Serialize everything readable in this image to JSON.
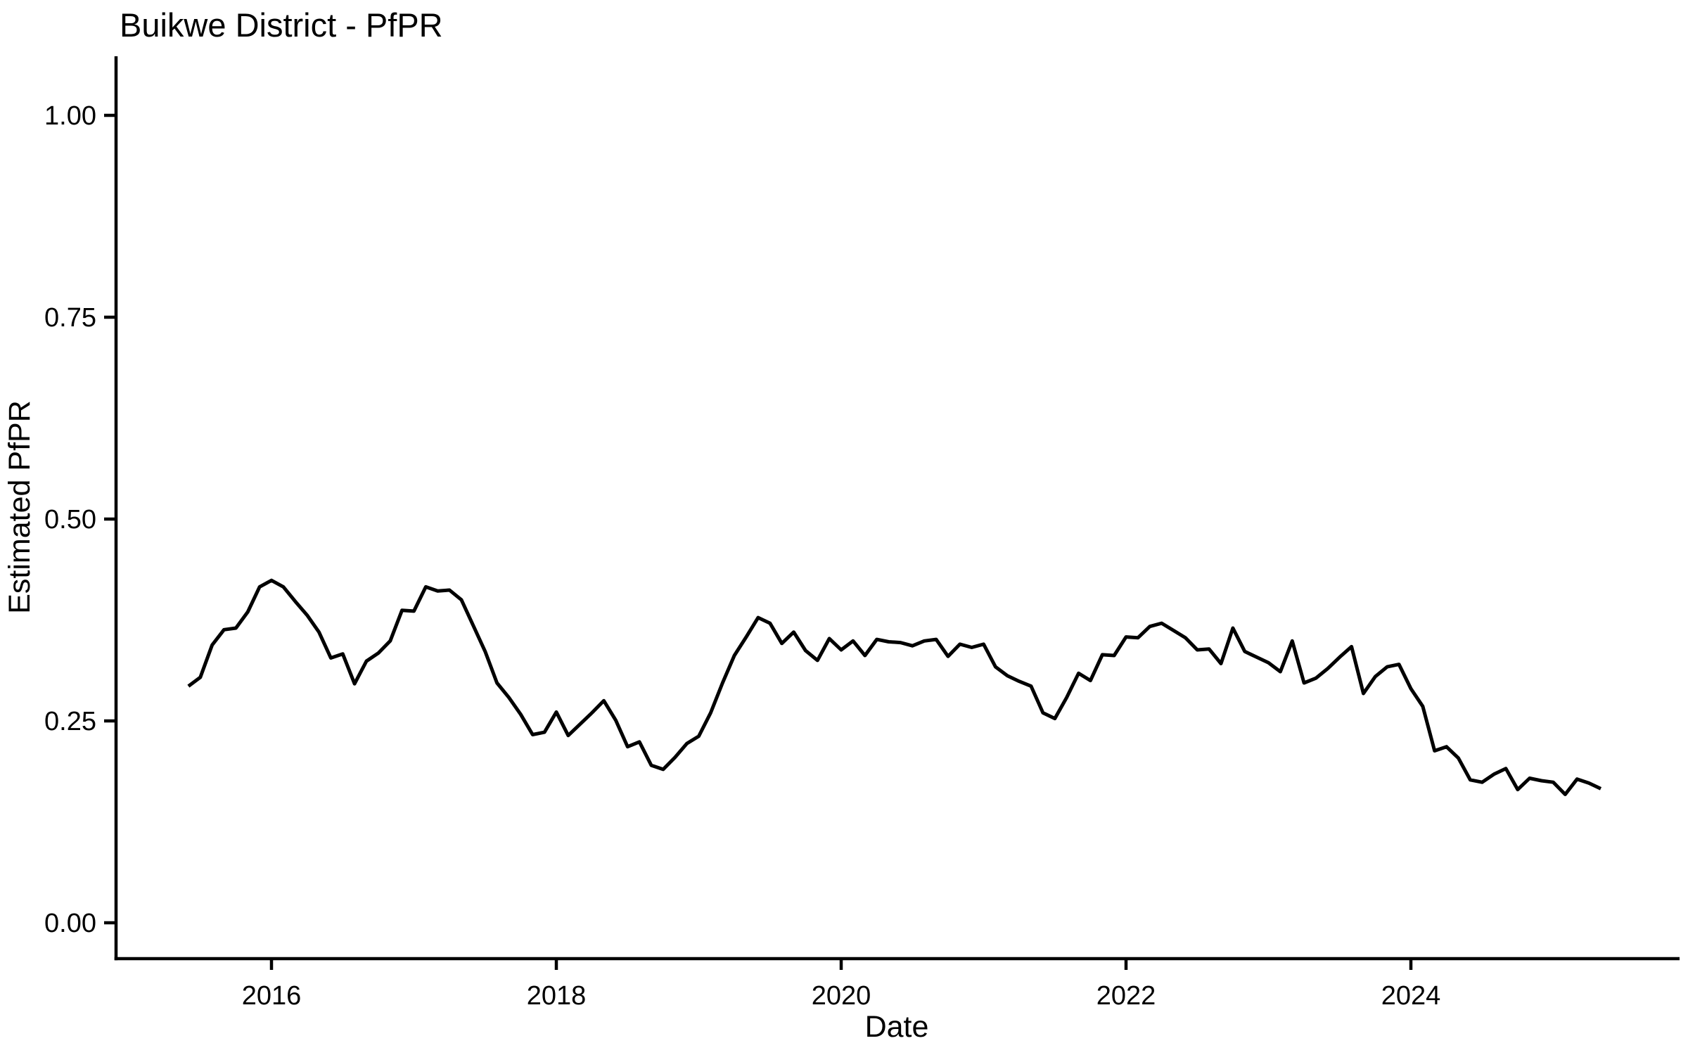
{
  "title": "Buikwe District - PfPR",
  "background_color": "#FFFFFF",
  "line_color": "#000000",
  "x_axis": {
    "label": "Date",
    "ticks": [
      {
        "value": 2016,
        "label": "2016"
      },
      {
        "value": 2018,
        "label": "2018"
      },
      {
        "value": 2020,
        "label": "2020"
      },
      {
        "value": 2022,
        "label": "2022"
      },
      {
        "value": 2024,
        "label": "2024"
      }
    ]
  },
  "y_axis": {
    "label": "Estimated PfPR",
    "ticks": [
      {
        "value": 0.0,
        "label": "0.00"
      },
      {
        "value": 0.25,
        "label": "0.25"
      },
      {
        "value": 0.5,
        "label": "0.50"
      },
      {
        "value": 0.75,
        "label": "0.75"
      },
      {
        "value": 1.0,
        "label": "1.00"
      }
    ]
  },
  "chart_data": {
    "type": "line",
    "title": "Buikwe District - PfPR",
    "xlabel": "Date",
    "ylabel": "Estimated PfPR",
    "ylim": [
      0.0,
      1.0
    ],
    "grid": false,
    "legend": false,
    "series_name": "Estimated PfPR",
    "x": [
      "2015-06",
      "2015-07",
      "2015-08",
      "2015-09",
      "2015-10",
      "2015-11",
      "2015-12",
      "2016-01",
      "2016-02",
      "2016-03",
      "2016-04",
      "2016-05",
      "2016-06",
      "2016-07",
      "2016-08",
      "2016-09",
      "2016-10",
      "2016-11",
      "2016-12",
      "2017-01",
      "2017-02",
      "2017-03",
      "2017-04",
      "2017-05",
      "2017-06",
      "2017-07",
      "2017-08",
      "2017-09",
      "2017-10",
      "2017-11",
      "2017-12",
      "2018-01",
      "2018-02",
      "2018-03",
      "2018-04",
      "2018-05",
      "2018-06",
      "2018-07",
      "2018-08",
      "2018-09",
      "2018-10",
      "2018-11",
      "2018-12",
      "2019-01",
      "2019-02",
      "2019-03",
      "2019-04",
      "2019-05",
      "2019-06",
      "2019-07",
      "2019-08",
      "2019-09",
      "2019-10",
      "2019-11",
      "2019-12",
      "2020-01",
      "2020-02",
      "2020-03",
      "2020-04",
      "2020-05",
      "2020-06",
      "2020-07",
      "2020-08",
      "2020-09",
      "2020-10",
      "2020-11",
      "2020-12",
      "2021-01",
      "2021-02",
      "2021-03",
      "2021-04",
      "2021-05",
      "2021-06",
      "2021-07",
      "2021-08",
      "2021-09",
      "2021-10",
      "2021-11",
      "2021-12",
      "2022-01",
      "2022-02",
      "2022-03",
      "2022-04",
      "2022-05",
      "2022-06",
      "2022-07",
      "2022-08",
      "2022-09",
      "2022-10",
      "2022-11",
      "2022-12",
      "2023-01",
      "2023-02",
      "2023-03",
      "2023-04",
      "2023-05",
      "2023-06",
      "2023-07",
      "2023-08",
      "2023-09",
      "2023-10",
      "2023-11",
      "2023-12",
      "2024-01",
      "2024-02",
      "2024-03",
      "2024-04",
      "2024-05",
      "2024-06",
      "2024-07",
      "2024-08",
      "2024-09",
      "2024-10",
      "2024-11",
      "2024-12",
      "2025-01",
      "2025-02",
      "2025-03",
      "2025-04",
      "2025-05"
    ],
    "values": [
      0.293,
      0.304,
      0.344,
      0.363,
      0.365,
      0.385,
      0.416,
      0.424,
      0.416,
      0.398,
      0.381,
      0.36,
      0.328,
      0.333,
      0.296,
      0.324,
      0.334,
      0.349,
      0.387,
      0.386,
      0.416,
      0.411,
      0.412,
      0.4,
      0.368,
      0.336,
      0.297,
      0.279,
      0.258,
      0.233,
      0.236,
      0.261,
      0.232,
      0.246,
      0.26,
      0.275,
      0.251,
      0.218,
      0.224,
      0.195,
      0.19,
      0.205,
      0.222,
      0.231,
      0.26,
      0.297,
      0.331,
      0.354,
      0.378,
      0.371,
      0.346,
      0.36,
      0.337,
      0.325,
      0.352,
      0.338,
      0.349,
      0.331,
      0.351,
      0.348,
      0.347,
      0.343,
      0.349,
      0.351,
      0.33,
      0.345,
      0.341,
      0.345,
      0.317,
      0.306,
      0.299,
      0.293,
      0.26,
      0.253,
      0.279,
      0.309,
      0.3,
      0.332,
      0.331,
      0.354,
      0.353,
      0.367,
      0.371,
      0.362,
      0.353,
      0.338,
      0.339,
      0.321,
      0.365,
      0.336,
      0.329,
      0.322,
      0.311,
      0.349,
      0.297,
      0.303,
      0.315,
      0.329,
      0.342,
      0.284,
      0.305,
      0.317,
      0.32,
      0.29,
      0.268,
      0.213,
      0.218,
      0.204,
      0.177,
      0.174,
      0.184,
      0.191,
      0.165,
      0.179,
      0.176,
      0.174,
      0.159,
      0.178,
      0.173,
      0.166
    ]
  }
}
